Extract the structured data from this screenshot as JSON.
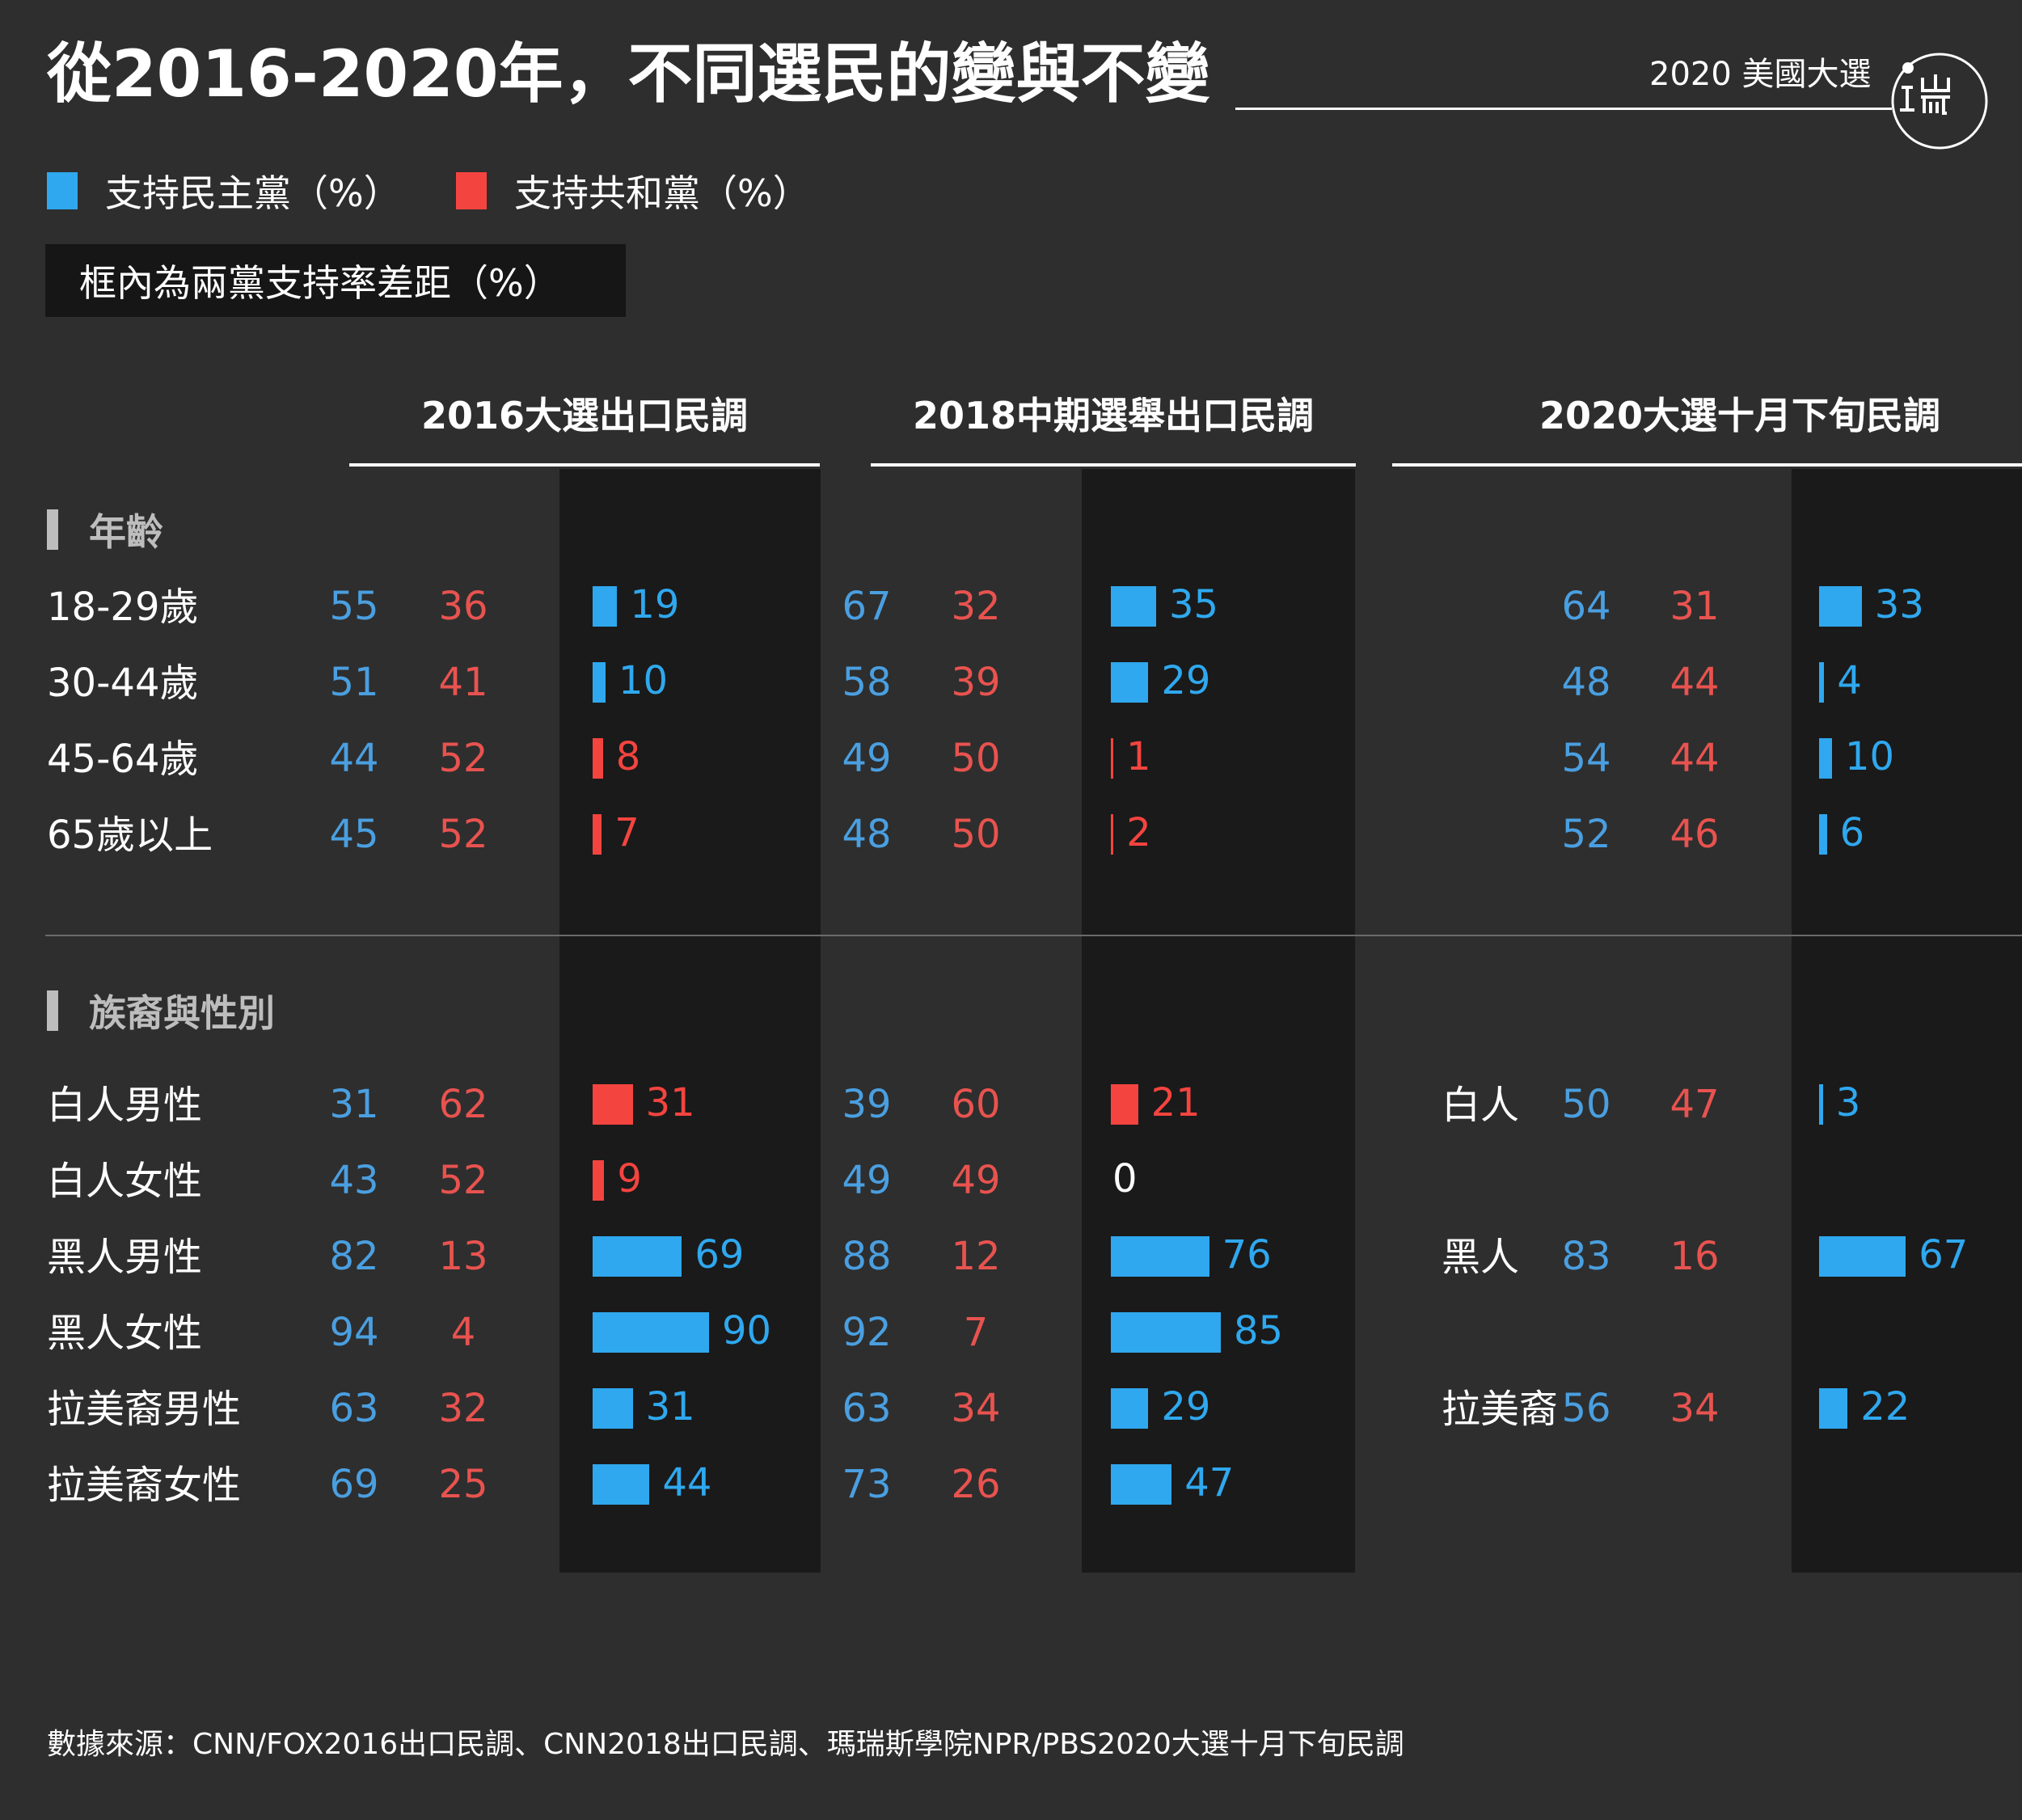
{
  "header": {
    "title": "從2016-2020年，不同選民的變與不變",
    "brand": "2020 美國大選"
  },
  "legend": {
    "dem_label": "支持民主黨（%）",
    "rep_label": "支持共和黨（%）",
    "note": "框內為兩黨支持率差距（%）"
  },
  "colors": {
    "background": "#2e2e2e",
    "panel": "#1a1a1a",
    "dem": "#2fa8ef",
    "rep": "#f4443f",
    "dem_text": "#4a9fe0"
  },
  "chart_data": {
    "type": "table",
    "panels": [
      {
        "title": "2016大選出口民調",
        "sections": [
          {
            "name": "年齡",
            "rows": [
              {
                "label": "18-29歲",
                "dem": 55,
                "rep": 36,
                "gap": 19,
                "lead": "dem"
              },
              {
                "label": "30-44歲",
                "dem": 51,
                "rep": 41,
                "gap": 10,
                "lead": "dem"
              },
              {
                "label": "45-64歲",
                "dem": 44,
                "rep": 52,
                "gap": 8,
                "lead": "rep"
              },
              {
                "label": "65歲以上",
                "dem": 45,
                "rep": 52,
                "gap": 7,
                "lead": "rep"
              }
            ]
          },
          {
            "name": "族裔與性別",
            "rows": [
              {
                "label": "白人男性",
                "dem": 31,
                "rep": 62,
                "gap": 31,
                "lead": "rep"
              },
              {
                "label": "白人女性",
                "dem": 43,
                "rep": 52,
                "gap": 9,
                "lead": "rep"
              },
              {
                "label": "黑人男性",
                "dem": 82,
                "rep": 13,
                "gap": 69,
                "lead": "dem"
              },
              {
                "label": "黑人女性",
                "dem": 94,
                "rep": 4,
                "gap": 90,
                "lead": "dem"
              },
              {
                "label": "拉美裔男性",
                "dem": 63,
                "rep": 32,
                "gap": 31,
                "lead": "dem"
              },
              {
                "label": "拉美裔女性",
                "dem": 69,
                "rep": 25,
                "gap": 44,
                "lead": "dem"
              }
            ]
          }
        ]
      },
      {
        "title": "2018中期選舉出口民調",
        "sections": [
          {
            "name": "年齡",
            "rows": [
              {
                "label": "18-29歲",
                "dem": 67,
                "rep": 32,
                "gap": 35,
                "lead": "dem"
              },
              {
                "label": "30-44歲",
                "dem": 58,
                "rep": 39,
                "gap": 29,
                "lead": "dem"
              },
              {
                "label": "45-64歲",
                "dem": 49,
                "rep": 50,
                "gap": 1,
                "lead": "rep"
              },
              {
                "label": "65歲以上",
                "dem": 48,
                "rep": 50,
                "gap": 2,
                "lead": "rep"
              }
            ]
          },
          {
            "name": "族裔與性別",
            "rows": [
              {
                "label": "白人男性",
                "dem": 39,
                "rep": 60,
                "gap": 21,
                "lead": "rep"
              },
              {
                "label": "白人女性",
                "dem": 49,
                "rep": 49,
                "gap": 0,
                "lead": "none"
              },
              {
                "label": "黑人男性",
                "dem": 88,
                "rep": 12,
                "gap": 76,
                "lead": "dem"
              },
              {
                "label": "黑人女性",
                "dem": 92,
                "rep": 7,
                "gap": 85,
                "lead": "dem"
              },
              {
                "label": "拉美裔男性",
                "dem": 63,
                "rep": 34,
                "gap": 29,
                "lead": "dem"
              },
              {
                "label": "拉美裔女性",
                "dem": 73,
                "rep": 26,
                "gap": 47,
                "lead": "dem"
              }
            ]
          }
        ]
      },
      {
        "title": "2020大選十月下旬民調",
        "sections": [
          {
            "name": "年齡",
            "rows": [
              {
                "label": "18-29歲",
                "dem": 64,
                "rep": 31,
                "gap": 33,
                "lead": "dem"
              },
              {
                "label": "30-44歲",
                "dem": 48,
                "rep": 44,
                "gap": 4,
                "lead": "dem"
              },
              {
                "label": "45-64歲",
                "dem": 54,
                "rep": 44,
                "gap": 10,
                "lead": "dem"
              },
              {
                "label": "65歲以上",
                "dem": 52,
                "rep": 46,
                "gap": 6,
                "lead": "dem"
              }
            ]
          },
          {
            "name": "族裔與性別",
            "rows": [
              {
                "label": "白人",
                "dem": 50,
                "rep": 47,
                "gap": 3,
                "lead": "dem"
              },
              {
                "label": "黑人",
                "dem": 83,
                "rep": 16,
                "gap": 67,
                "lead": "dem"
              },
              {
                "label": "拉美裔",
                "dem": 56,
                "rep": 34,
                "gap": 22,
                "lead": "dem"
              }
            ]
          }
        ]
      }
    ]
  },
  "source": "數據來源：CNN/FOX2016出口民調、CNN2018出口民調、瑪瑞斯學院NPR/PBS2020大選十月下旬民調"
}
